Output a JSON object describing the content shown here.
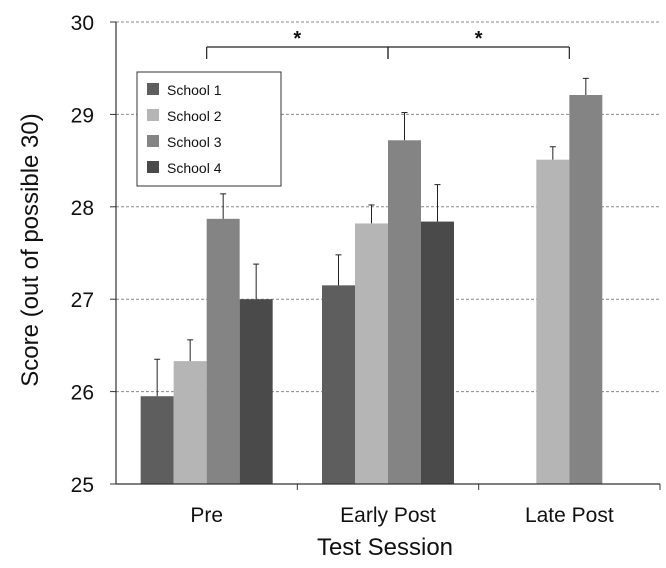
{
  "chart_data": {
    "type": "bar",
    "title": "",
    "xlabel": "Test Session",
    "ylabel": "Score (out of possible 30)",
    "ylim": [
      25,
      30
    ],
    "yticks": [
      25,
      26,
      27,
      28,
      29,
      30
    ],
    "grid": true,
    "legend_position": "top-left",
    "categories": [
      "Pre",
      "Early Post",
      "Late Post"
    ],
    "series": [
      {
        "name": "School 1",
        "color": "#5e5e5e",
        "values": [
          25.95,
          27.15,
          null
        ],
        "errors": [
          0.4,
          0.33,
          null
        ]
      },
      {
        "name": "School 2",
        "color": "#b5b5b5",
        "values": [
          26.33,
          27.82,
          28.51
        ],
        "errors": [
          0.23,
          0.2,
          0.14
        ]
      },
      {
        "name": "School 3",
        "color": "#848484",
        "values": [
          27.87,
          28.72,
          29.21
        ],
        "errors": [
          0.27,
          0.3,
          0.18
        ]
      },
      {
        "name": "School 4",
        "color": "#4a4a4a",
        "values": [
          27.0,
          27.84,
          null
        ],
        "errors": [
          0.38,
          0.4,
          null
        ]
      }
    ],
    "annotations": [
      {
        "type": "significance",
        "from_category": "Pre",
        "to_category": "Early Post",
        "label": "*"
      },
      {
        "type": "significance",
        "from_category": "Early Post",
        "to_category": "Late Post",
        "label": "*"
      }
    ]
  }
}
